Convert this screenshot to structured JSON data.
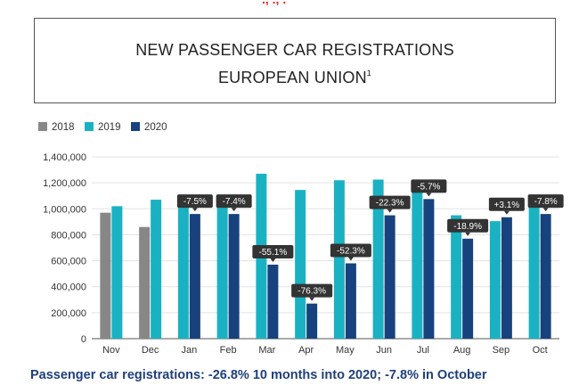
{
  "header_fragment": "., ., .",
  "title": {
    "line1": "NEW PASSENGER CAR REGISTRATIONS",
    "line2": "EUROPEAN UNION",
    "superscript": "1"
  },
  "footer": "Passenger car registrations: -26.8% 10 months into 2020; -7.8% in October",
  "chart_data": {
    "type": "bar",
    "title": "NEW PASSENGER CAR REGISTRATIONS EUROPEAN UNION1",
    "xlabel": "",
    "ylabel": "",
    "ylim": [
      0,
      1400000
    ],
    "yticks": [
      0,
      200000,
      400000,
      600000,
      800000,
      1000000,
      1200000,
      1400000
    ],
    "ytick_labels": [
      "0",
      "200,000",
      "400,000",
      "600,000",
      "800,000",
      "1,000,000",
      "1,200,000",
      "1,400,000"
    ],
    "grid": true,
    "legend_position": "top-left",
    "categories": [
      "Nov",
      "Dec",
      "Jan",
      "Feb",
      "Mar",
      "Apr",
      "May",
      "Jun",
      "Jul",
      "Aug",
      "Sep",
      "Oct"
    ],
    "series": [
      {
        "name": "2018",
        "color": "#878787",
        "values": [
          970000,
          860000,
          null,
          null,
          null,
          null,
          null,
          null,
          null,
          null,
          null,
          null
        ]
      },
      {
        "name": "2019",
        "color": "#1ab2c2",
        "values": [
          1020000,
          1070000,
          1035000,
          1035000,
          1270000,
          1145000,
          1220000,
          1225000,
          1145000,
          950000,
          905000,
          1040000
        ]
      },
      {
        "name": "2020",
        "color": "#17427d",
        "values": [
          null,
          null,
          960000,
          960000,
          570000,
          270000,
          580000,
          950000,
          1075000,
          770000,
          935000,
          960000
        ]
      }
    ],
    "annotations": [
      {
        "category": "Jan",
        "text": "-7.5%"
      },
      {
        "category": "Feb",
        "text": "-7.4%"
      },
      {
        "category": "Mar",
        "text": "-55.1%"
      },
      {
        "category": "Apr",
        "text": "-76.3%"
      },
      {
        "category": "May",
        "text": "-52.3%"
      },
      {
        "category": "Jun",
        "text": "-22.3%"
      },
      {
        "category": "Jul",
        "text": "-5.7%"
      },
      {
        "category": "Aug",
        "text": "-18.9%"
      },
      {
        "category": "Sep",
        "text": "+3.1%"
      },
      {
        "category": "Oct",
        "text": "-7.8%"
      }
    ]
  }
}
